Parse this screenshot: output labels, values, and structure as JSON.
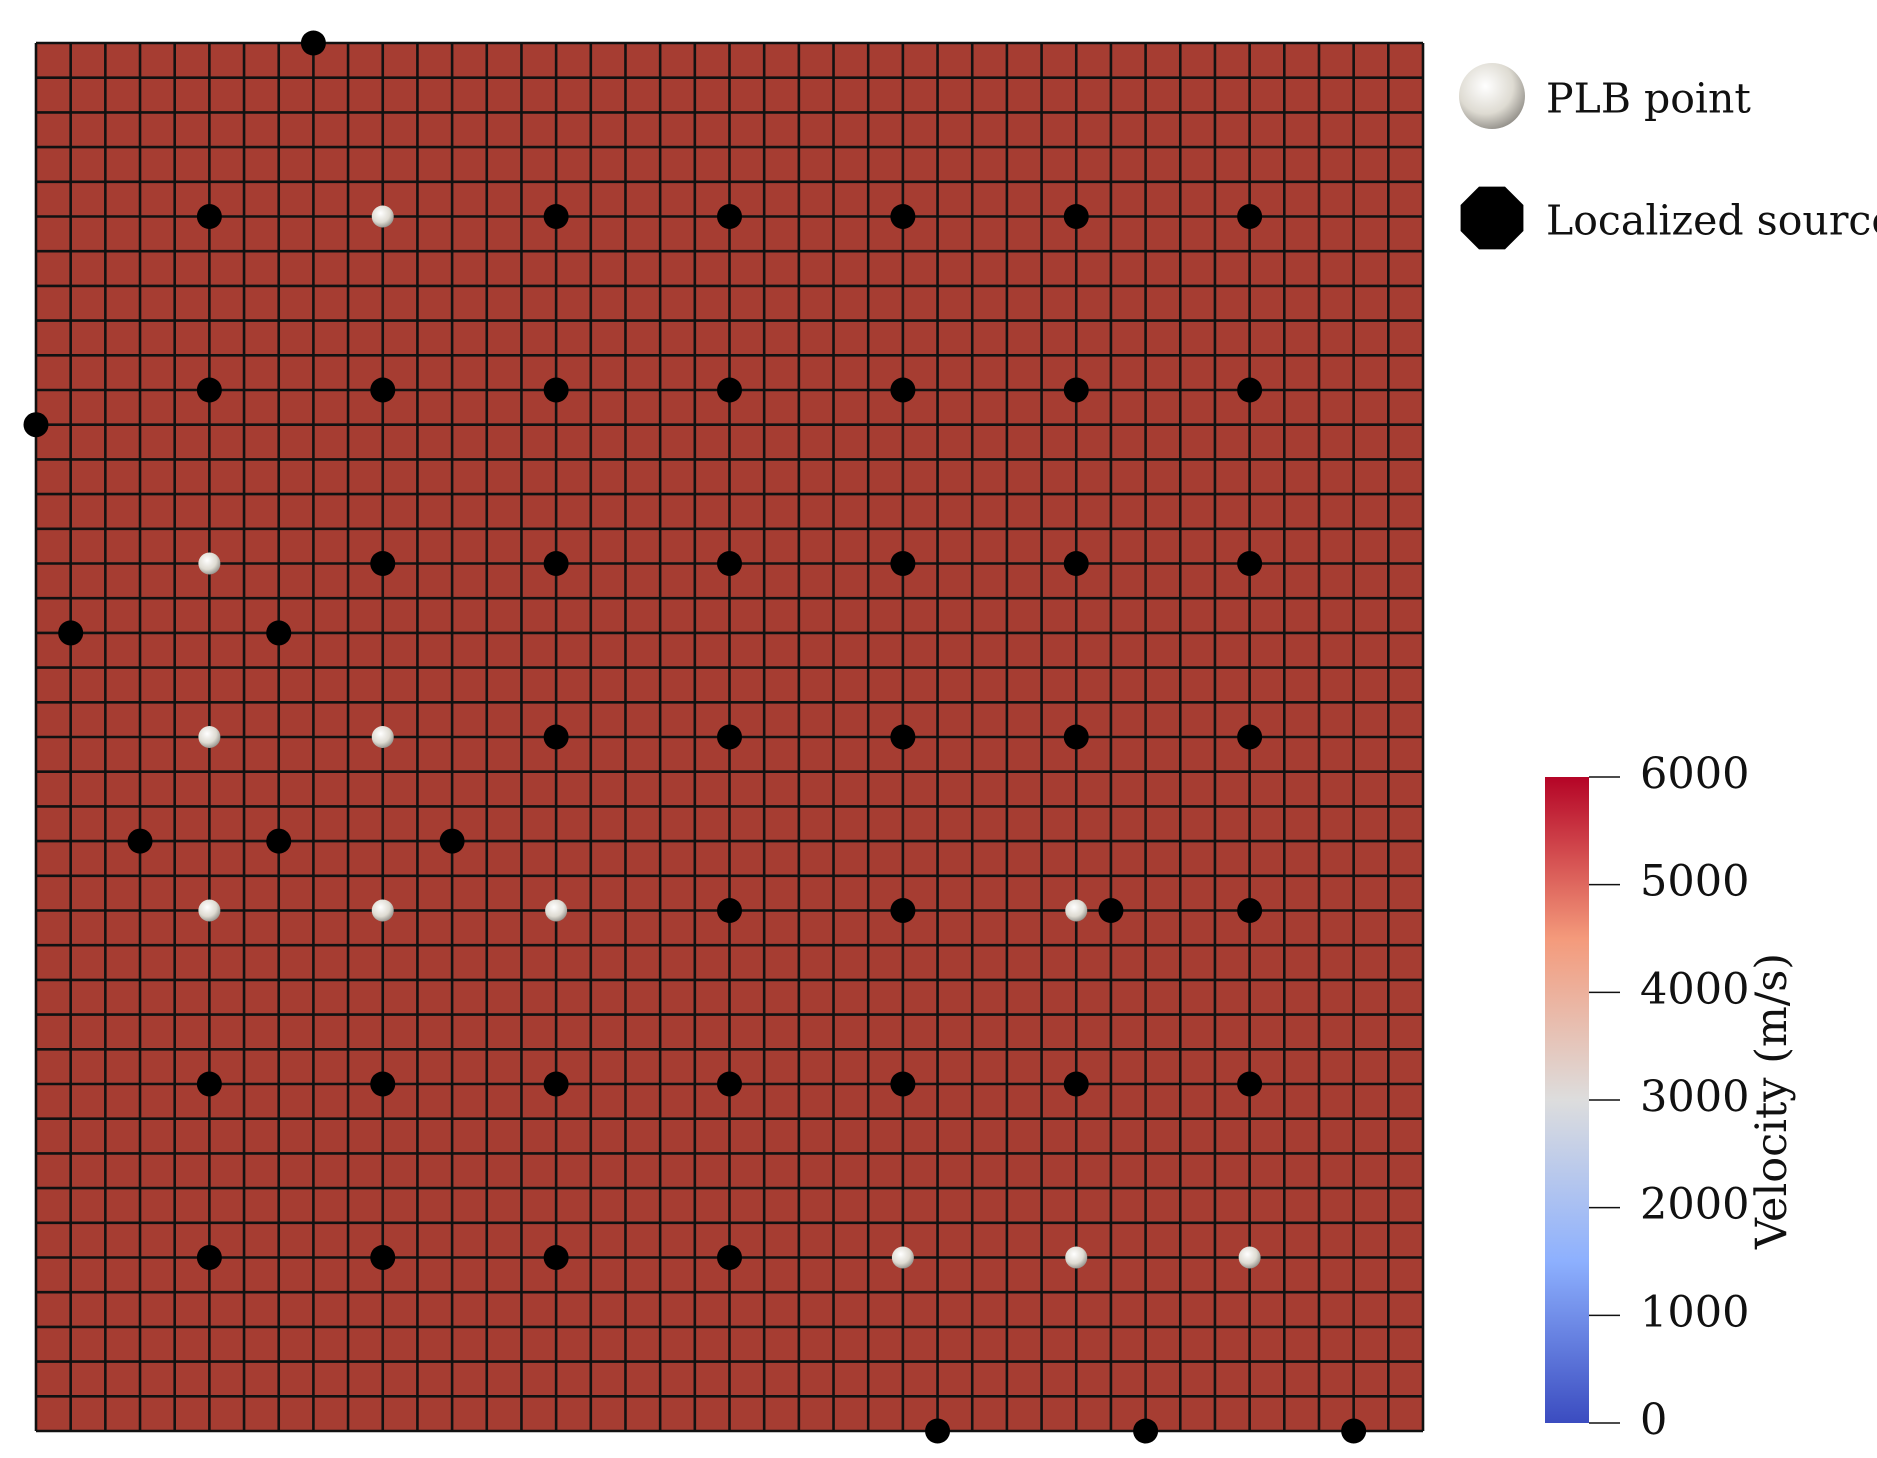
{
  "chart_data": {
    "type": "scatter",
    "xlim": [
      0,
      40
    ],
    "ylim": [
      0,
      40
    ],
    "mesh_color": "#a63d32",
    "grid": true,
    "series": [
      {
        "name": "PLB point",
        "color": "#e8e6e0",
        "x": [
          10,
          5,
          5,
          10,
          5,
          10,
          15,
          30,
          25,
          30,
          35
        ],
        "y": [
          5,
          15,
          20,
          20,
          25,
          25,
          25,
          25,
          35,
          35,
          35
        ]
      },
      {
        "name": "Localized source",
        "color": "#000000",
        "x": [
          5,
          15,
          20,
          25,
          30,
          35,
          5,
          10,
          15,
          20,
          25,
          30,
          35,
          10,
          15,
          20,
          25,
          30,
          35,
          15,
          20,
          25,
          30,
          35,
          20,
          25,
          35,
          5,
          10,
          15,
          20,
          25,
          30,
          35,
          5,
          10,
          15,
          20,
          8,
          0,
          1,
          7,
          3,
          7,
          12,
          31,
          26,
          32,
          38
        ],
        "y": [
          5,
          5,
          5,
          5,
          5,
          5,
          10,
          10,
          10,
          10,
          10,
          10,
          10,
          15,
          15,
          15,
          15,
          15,
          15,
          20,
          20,
          20,
          20,
          20,
          25,
          25,
          25,
          30,
          30,
          30,
          30,
          30,
          30,
          30,
          35,
          35,
          35,
          35,
          0,
          11,
          17,
          17,
          23,
          23,
          23,
          25,
          40,
          40,
          40
        ]
      }
    ],
    "colorbar": {
      "title": "Velocity (m/s)",
      "clim": [
        0,
        6000
      ],
      "ticks": [
        0,
        1000,
        2000,
        3000,
        4000,
        5000,
        6000
      ],
      "colormap": [
        "#3b4cc0",
        "#8db0fe",
        "#dddddd",
        "#f49a7b",
        "#b40426"
      ]
    }
  }
}
